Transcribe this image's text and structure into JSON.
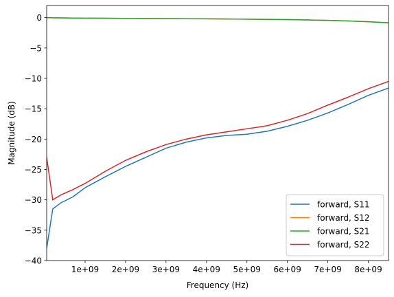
{
  "chart_data": {
    "type": "line",
    "title": "",
    "xlabel": "Frequency (Hz)",
    "ylabel": "Magnitude (dB)",
    "xlim": [
      50000000,
      8500000000
    ],
    "ylim": [
      -40,
      2
    ],
    "grid": false,
    "legend_position": "lower-right",
    "xticks": [
      1000000000,
      2000000000,
      3000000000,
      4000000000,
      5000000000,
      6000000000,
      7000000000,
      8000000000
    ],
    "xtick_labels": [
      "1e+09",
      "2e+09",
      "3e+09",
      "4e+09",
      "5e+09",
      "6e+09",
      "7e+09",
      "8e+09"
    ],
    "yticks": [
      0,
      -5,
      -10,
      -15,
      -20,
      -25,
      -30,
      -35,
      -40
    ],
    "ytick_labels": [
      "0",
      "−5",
      "−10",
      "−15",
      "−20",
      "−25",
      "−30",
      "−35",
      "−40"
    ],
    "x": [
      50000000,
      200000000,
      400000000,
      700000000,
      1000000000,
      1500000000,
      2000000000,
      2500000000,
      3000000000,
      3500000000,
      4000000000,
      4500000000,
      5000000000,
      5500000000,
      6000000000,
      6500000000,
      7000000000,
      7500000000,
      8000000000,
      8500000000
    ],
    "series": [
      {
        "name": "forward, S11",
        "color": "#1f77b4",
        "values": [
          -38,
          -31.5,
          -30.5,
          -29.5,
          -28,
          -26.2,
          -24.5,
          -23,
          -21.5,
          -20.5,
          -19.8,
          -19.4,
          -19.2,
          -18.7,
          -17.9,
          -16.9,
          -15.7,
          -14.3,
          -12.8,
          -11.6
        ]
      },
      {
        "name": "forward, S12",
        "color": "#ff7f0e",
        "values": [
          0,
          -0.02,
          -0.04,
          -0.06,
          -0.08,
          -0.1,
          -0.12,
          -0.14,
          -0.16,
          -0.18,
          -0.2,
          -0.22,
          -0.25,
          -0.28,
          -0.32,
          -0.38,
          -0.45,
          -0.55,
          -0.68,
          -0.85
        ]
      },
      {
        "name": "forward, S21",
        "color": "#2ca02c",
        "values": [
          0,
          -0.02,
          -0.04,
          -0.06,
          -0.08,
          -0.1,
          -0.12,
          -0.14,
          -0.16,
          -0.18,
          -0.2,
          -0.22,
          -0.25,
          -0.28,
          -0.32,
          -0.38,
          -0.45,
          -0.55,
          -0.68,
          -0.85
        ]
      },
      {
        "name": "forward, S22",
        "color": "#d62728",
        "values": [
          -23,
          -30,
          -29.2,
          -28.3,
          -27.3,
          -25.3,
          -23.5,
          -22.1,
          -20.9,
          -20,
          -19.3,
          -18.8,
          -18.3,
          -17.8,
          -16.9,
          -15.8,
          -14.4,
          -13.1,
          -11.7,
          -10.5
        ]
      }
    ]
  }
}
